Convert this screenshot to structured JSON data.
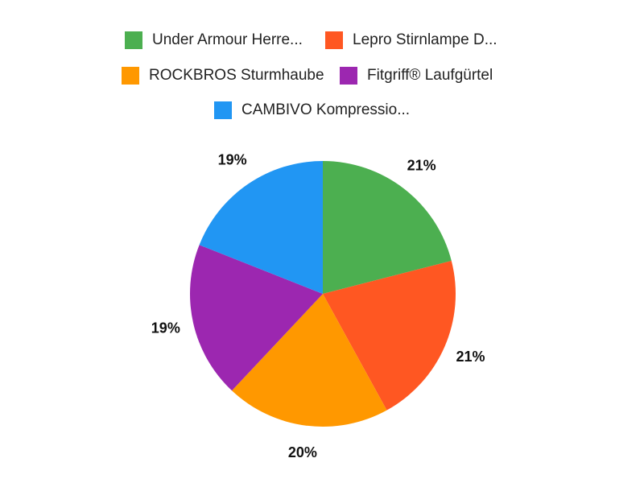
{
  "chart_data": {
    "type": "pie",
    "title": "",
    "legend_position": "top",
    "series": [
      {
        "name": "Under Armour Herre...",
        "value": 21,
        "label": "21%",
        "color": "#4caf50"
      },
      {
        "name": "Lepro Stirnlampe D...",
        "value": 21,
        "label": "21%",
        "color": "#ff5722"
      },
      {
        "name": "ROCKBROS Sturmhaube",
        "value": 20,
        "label": "20%",
        "color": "#ff9800"
      },
      {
        "name": "Fitgriff® Laufgürtel",
        "value": 19,
        "label": "19%",
        "color": "#9c27b0"
      },
      {
        "name": "CAMBIVO Kompressio...",
        "value": 19,
        "label": "19%",
        "color": "#2196f3"
      }
    ]
  }
}
